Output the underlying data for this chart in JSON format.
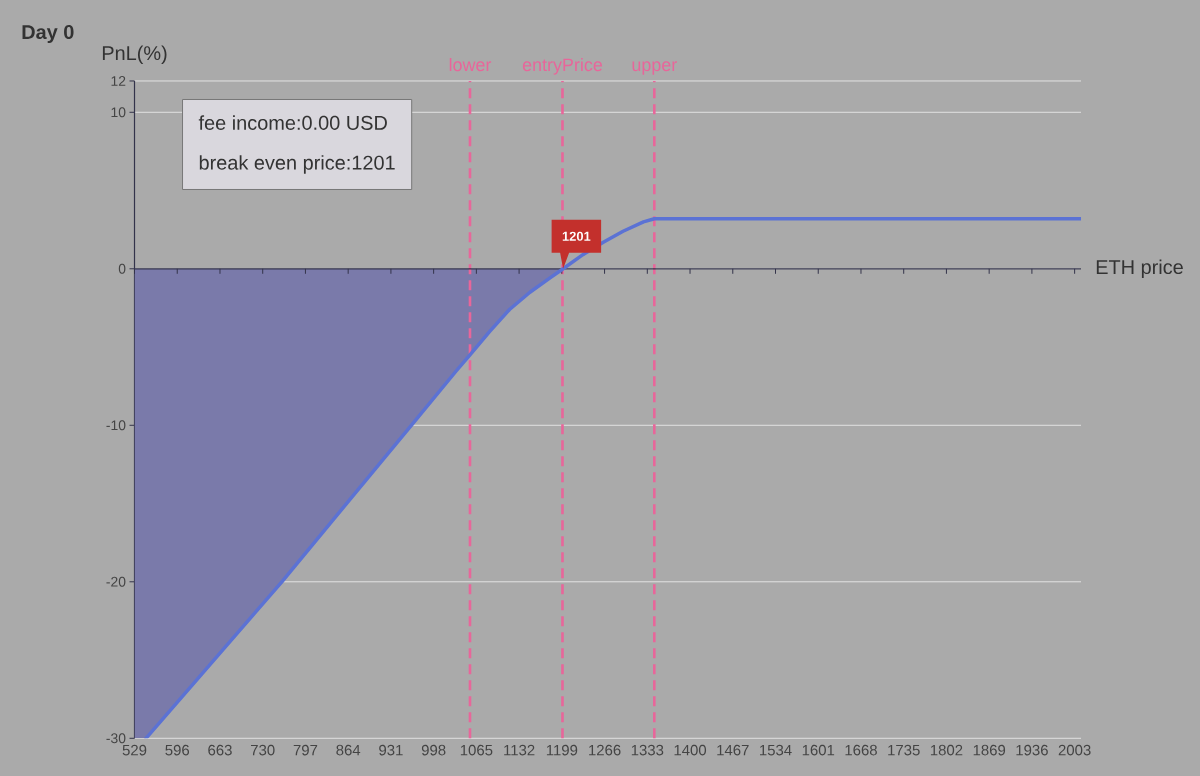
{
  "chart_data": {
    "type": "line",
    "title": "Day 0",
    "xlabel": "ETH price",
    "ylabel": "PnL(%)",
    "xlim": [
      529,
      2013
    ],
    "xticks": [
      529,
      596,
      663,
      730,
      797,
      864,
      931,
      998,
      1065,
      1132,
      1199,
      1266,
      1333,
      1400,
      1467,
      1534,
      1601,
      1668,
      1735,
      1802,
      1869,
      1936,
      2003
    ],
    "ylim": [
      -30,
      12
    ],
    "yticks": [
      -30,
      -20,
      -10,
      0,
      10,
      12
    ],
    "grid": "y",
    "series": [
      {
        "type": "area",
        "color": "#7a7aaa",
        "x": [
          529,
          547,
          760,
          963,
          1034,
          1055,
          1086,
          1117,
          1149,
          1180,
          1201
        ],
        "values": [
          -30,
          -30,
          -20,
          -10,
          -6.5,
          -5.5,
          -4.0,
          -2.6,
          -1.5,
          -0.6,
          0
        ]
      },
      {
        "type": "line",
        "color": "#5b72d4",
        "x": [
          547,
          760,
          963,
          1034,
          1055,
          1086,
          1117,
          1149,
          1180,
          1201,
          1232,
          1264,
          1295,
          1327,
          1344,
          2013
        ],
        "values": [
          -30,
          -20,
          -10,
          -6.5,
          -5.5,
          -4.0,
          -2.6,
          -1.5,
          -0.6,
          0,
          0.9,
          1.7,
          2.4,
          3.0,
          3.2,
          3.2
        ]
      }
    ],
    "ref_lines": [
      {
        "axis": "x",
        "value": 1055,
        "label": "lower",
        "color": "#e8669a",
        "line_style": "dashed"
      },
      {
        "axis": "x",
        "value": 1200,
        "label": "entryPrice",
        "color": "#e8669a",
        "line_style": "dashed"
      },
      {
        "axis": "x",
        "value": 1344,
        "label": "upper",
        "color": "#e8669a",
        "line_style": "dashed"
      }
    ],
    "annotations": [
      "fee income:0.00 USD",
      "break even price:1201",
      {
        "text": "1201",
        "x": 1201,
        "y": 0
      }
    ]
  }
}
